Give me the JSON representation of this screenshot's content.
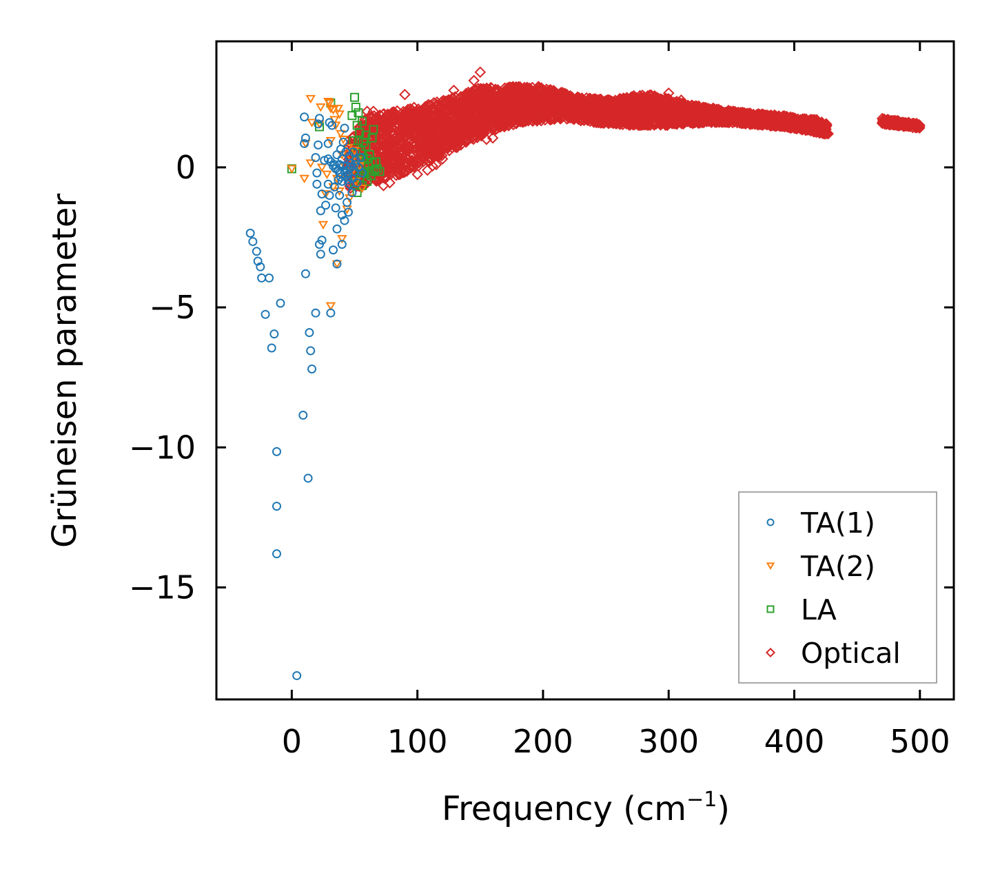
{
  "chart_data": {
    "type": "scatter",
    "title": "",
    "xlabel": "Frequency (cm",
    "xlabel_sup": "−1",
    "xlabel_end": ")",
    "ylabel": "Grüneisen parameter",
    "xlim": [
      -60,
      527
    ],
    "ylim": [
      -19,
      4.5
    ],
    "xticks": [
      0,
      100,
      200,
      300,
      400,
      500
    ],
    "xtick_labels": [
      "0",
      "100",
      "200",
      "300",
      "400",
      "500"
    ],
    "yticks": [
      0,
      -5,
      -10,
      -15
    ],
    "ytick_labels": [
      "0",
      "−5",
      "−10",
      "−15"
    ],
    "grid": false,
    "legend_position": "lower-right",
    "series": [
      {
        "name": "TA(1)",
        "color": "#1f77b4",
        "marker": "circle",
        "points": [
          [
            -33,
            -2.35
          ],
          [
            -31,
            -2.65
          ],
          [
            -28,
            -3.0
          ],
          [
            -27,
            -3.35
          ],
          [
            -25,
            -3.55
          ],
          [
            -24,
            -3.95
          ],
          [
            -18,
            -3.95
          ],
          [
            -21,
            -5.25
          ],
          [
            -14,
            -5.95
          ],
          [
            -16,
            -6.45
          ],
          [
            -9,
            -4.85
          ],
          [
            -12,
            -10.15
          ],
          [
            -12,
            -12.1
          ],
          [
            -12,
            -13.8
          ],
          [
            4,
            -18.15
          ],
          [
            9,
            -8.85
          ],
          [
            13,
            -11.1
          ],
          [
            11,
            -3.8
          ],
          [
            14,
            -5.9
          ],
          [
            15,
            -6.55
          ],
          [
            16,
            -7.2
          ],
          [
            19,
            -5.2
          ],
          [
            31,
            -5.2
          ],
          [
            36,
            -3.45
          ],
          [
            33,
            -2.95
          ],
          [
            40,
            -2.75
          ],
          [
            22,
            -2.75
          ],
          [
            23,
            -3.1
          ],
          [
            24,
            -2.6
          ],
          [
            23,
            -1.55
          ],
          [
            27,
            -1.35
          ],
          [
            20,
            -0.6
          ],
          [
            24,
            -0.95
          ],
          [
            20,
            -0.2
          ],
          [
            29,
            -0.6
          ],
          [
            30,
            -1.0
          ],
          [
            35,
            -1.45
          ],
          [
            38,
            -1.0
          ],
          [
            36,
            -2.2
          ],
          [
            40,
            -1.7
          ],
          [
            42,
            -1.9
          ],
          [
            45,
            -1.6
          ],
          [
            44,
            -1.25
          ],
          [
            34,
            -0.7
          ],
          [
            37,
            -0.45
          ],
          [
            10,
            1.8
          ],
          [
            11,
            1.05
          ],
          [
            10,
            0.85
          ],
          [
            19,
            0.35
          ],
          [
            21,
            0.8
          ],
          [
            21,
            1.55
          ],
          [
            22,
            1.75
          ],
          [
            26,
            0.25
          ],
          [
            29,
            0.85
          ],
          [
            29,
            0.3
          ],
          [
            30,
            1.6
          ],
          [
            32,
            1.5
          ],
          [
            31,
            0.2
          ],
          [
            33,
            0.05
          ],
          [
            35,
            -0.05
          ],
          [
            36,
            0.45
          ],
          [
            38,
            0.1
          ],
          [
            39,
            0.65
          ],
          [
            40,
            0.3
          ],
          [
            41,
            0.9
          ],
          [
            42,
            1.4
          ],
          [
            43,
            0.55
          ],
          [
            44,
            0.05
          ],
          [
            45,
            -0.25
          ],
          [
            46,
            0.4
          ],
          [
            47,
            0.15
          ],
          [
            48,
            -0.4
          ],
          [
            49,
            0.55
          ],
          [
            50,
            -0.15
          ],
          [
            51,
            0.25
          ],
          [
            52,
            -0.55
          ],
          [
            53,
            0.0
          ],
          [
            55,
            0.35
          ],
          [
            56,
            -0.2
          ],
          [
            38,
            -0.2
          ],
          [
            40,
            -0.5
          ],
          [
            43,
            -0.3
          ],
          [
            46,
            -0.6
          ],
          [
            48,
            -0.9
          ],
          [
            34,
            0.1
          ],
          [
            37,
            -0.1
          ],
          [
            41,
            0.05
          ],
          [
            44,
            -0.1
          ],
          [
            47,
            0.0
          ],
          [
            50,
            0.1
          ],
          [
            39,
            -0.35
          ],
          [
            42,
            -0.15
          ],
          [
            45,
            -0.45
          ]
        ]
      },
      {
        "name": "TA(2)",
        "color": "#ff7f0e",
        "marker": "triangle-down",
        "points": [
          [
            0,
            -0.05
          ],
          [
            10,
            -0.4
          ],
          [
            11,
            0.85
          ],
          [
            15,
            0.15
          ],
          [
            16,
            1.6
          ],
          [
            15,
            2.45
          ],
          [
            23,
            2.15
          ],
          [
            24,
            0.0
          ],
          [
            22,
            1.55
          ],
          [
            25,
            -2.05
          ],
          [
            27,
            -0.95
          ],
          [
            28,
            -0.25
          ],
          [
            30,
            2.3
          ],
          [
            31,
            2.1
          ],
          [
            29,
            2.35
          ],
          [
            31,
            0.95
          ],
          [
            33,
            2.05
          ],
          [
            34,
            1.7
          ],
          [
            35,
            1.5
          ],
          [
            36,
            -3.45
          ],
          [
            31,
            -4.95
          ],
          [
            33,
            -0.7
          ],
          [
            36,
            -0.4
          ],
          [
            38,
            -0.85
          ],
          [
            40,
            -2.55
          ],
          [
            39,
            1.2
          ],
          [
            40,
            0.45
          ],
          [
            42,
            0.05
          ],
          [
            43,
            -0.35
          ],
          [
            44,
            -1.5
          ],
          [
            45,
            0.7
          ],
          [
            46,
            -1.1
          ],
          [
            47,
            0.35
          ],
          [
            48,
            -0.15
          ],
          [
            50,
            0.6
          ],
          [
            51,
            -0.5
          ],
          [
            52,
            0.25
          ],
          [
            54,
            0.05
          ],
          [
            56,
            -0.75
          ],
          [
            37,
            2.1
          ],
          [
            38,
            1.9
          ],
          [
            41,
            1.0
          ]
        ]
      },
      {
        "name": "LA",
        "color": "#2ca02c",
        "marker": "square",
        "points": [
          [
            0,
            -0.05
          ],
          [
            22,
            1.45
          ],
          [
            31,
            2.3
          ],
          [
            48,
            1.85
          ],
          [
            50,
            2.5
          ],
          [
            51,
            2.15
          ],
          [
            52,
            1.5
          ],
          [
            53,
            1.95
          ],
          [
            53,
            0.95
          ],
          [
            54,
            1.25
          ],
          [
            55,
            0.6
          ],
          [
            55,
            0.1
          ],
          [
            56,
            1.65
          ],
          [
            57,
            0.35
          ],
          [
            58,
            -0.2
          ],
          [
            59,
            0.75
          ],
          [
            60,
            -0.5
          ],
          [
            61,
            0.05
          ],
          [
            62,
            0.45
          ],
          [
            63,
            -0.3
          ],
          [
            64,
            1.05
          ],
          [
            65,
            1.35
          ],
          [
            66,
            -0.1
          ],
          [
            67,
            0.2
          ],
          [
            68,
            -0.05
          ],
          [
            70,
            -0.15
          ],
          [
            50,
            -0.55
          ],
          [
            52,
            -0.9
          ],
          [
            54,
            -0.35
          ],
          [
            56,
            -0.65
          ],
          [
            58,
            0.0
          ],
          [
            60,
            0.3
          ],
          [
            62,
            -0.15
          ],
          [
            64,
            0.15
          ],
          [
            49,
            0.95
          ],
          [
            51,
            0.5
          ],
          [
            53,
            0.25
          ],
          [
            55,
            -0.2
          ],
          [
            57,
            0.9
          ],
          [
            59,
            1.15
          ]
        ]
      },
      {
        "name": "Optical",
        "color": "#d62728",
        "marker": "diamond",
        "band": [
          [
            45,
            -0.8,
            1.0
          ],
          [
            60,
            -0.6,
            1.8
          ],
          [
            75,
            -0.4,
            2.0
          ],
          [
            90,
            -0.2,
            2.1
          ],
          [
            105,
            0.1,
            2.2
          ],
          [
            120,
            0.4,
            2.4
          ],
          [
            135,
            0.8,
            2.6
          ],
          [
            150,
            1.1,
            2.85
          ],
          [
            165,
            1.4,
            2.85
          ],
          [
            180,
            1.55,
            2.9
          ],
          [
            195,
            1.65,
            2.9
          ],
          [
            210,
            1.7,
            2.75
          ],
          [
            225,
            1.7,
            2.55
          ],
          [
            240,
            1.6,
            2.45
          ],
          [
            255,
            1.55,
            2.4
          ],
          [
            270,
            1.5,
            2.55
          ],
          [
            285,
            1.5,
            2.6
          ],
          [
            300,
            1.5,
            2.45
          ],
          [
            315,
            1.55,
            2.25
          ],
          [
            330,
            1.6,
            2.15
          ],
          [
            345,
            1.6,
            2.05
          ],
          [
            360,
            1.55,
            1.95
          ],
          [
            375,
            1.5,
            1.9
          ],
          [
            390,
            1.45,
            1.85
          ],
          [
            405,
            1.35,
            1.75
          ],
          [
            418,
            1.25,
            1.7
          ],
          [
            426,
            1.15,
            1.55
          ]
        ],
        "band2": [
          [
            470,
            1.55,
            1.75
          ],
          [
            480,
            1.5,
            1.68
          ],
          [
            490,
            1.45,
            1.62
          ],
          [
            500,
            1.38,
            1.55
          ]
        ],
        "outliers": [
          [
            90,
            2.6
          ],
          [
            150,
            3.4
          ],
          [
            145,
            3.1
          ],
          [
            129,
            2.75
          ],
          [
            120,
            0.3
          ],
          [
            115,
            0.1
          ],
          [
            112,
            0.05
          ],
          [
            108,
            -0.1
          ],
          [
            100,
            -0.25
          ],
          [
            78,
            -0.55
          ],
          [
            73,
            -0.65
          ],
          [
            155,
            1.0
          ],
          [
            160,
            1.05
          ],
          [
            290,
            1.6
          ],
          [
            300,
            2.65
          ],
          [
            310,
            2.4
          ],
          [
            65,
            2.0
          ],
          [
            60,
            2.0
          ],
          [
            75,
            1.1
          ],
          [
            427,
            1.2
          ]
        ]
      }
    ]
  }
}
